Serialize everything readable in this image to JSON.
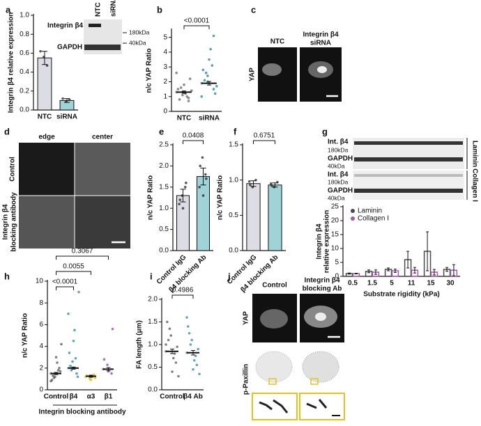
{
  "chart_data": [
    {
      "panel": "a",
      "type": "bar",
      "ylabel": "Integrin β4 relative expression",
      "categories": [
        "NTC",
        "siRNA"
      ],
      "values": [
        0.55,
        0.1
      ],
      "errors": [
        0.07,
        0.02
      ],
      "colors": [
        "#dcdce4",
        "#9fd3d8"
      ],
      "points": [
        [
          0.62,
          0.56,
          0.47
        ],
        [
          0.12,
          0.09,
          0.11
        ]
      ],
      "ylim": [
        0,
        1
      ],
      "yticks": [
        {
          "value": 0,
          "label": "0.0"
        },
        {
          "value": 0.2,
          "label": "0.2"
        },
        {
          "value": 0.4,
          "label": "0.4"
        },
        {
          "value": 0.6,
          "label": "0.6"
        },
        {
          "value": 0.8,
          "label": "0.8"
        },
        {
          "value": 1,
          "label": "1.0"
        }
      ]
    },
    {
      "panel": "b",
      "type": "dot",
      "ylabel": "n/c YAP Ratio",
      "categories": [
        "NTC",
        "siRNA"
      ],
      "values": [
        1.3,
        1.9
      ],
      "errors": [
        0.08,
        0.12
      ],
      "colors": [
        "#666666",
        "#1f7d99"
      ],
      "points": [
        [
          1.3,
          1.1,
          0.9,
          1.5,
          1.8,
          2.2,
          0.8,
          1.2,
          1.4,
          1.6,
          1.0,
          2.6,
          1.3,
          0.7
        ],
        [
          1.9,
          2.4,
          1.5,
          2.8,
          3.5,
          1.2,
          2.1,
          4.2,
          1.7,
          2.6,
          3.1,
          1.0,
          2.0,
          5.1
        ]
      ],
      "pvalues": [
        "<0.0001"
      ],
      "ylim": [
        0,
        5.5
      ],
      "yticks": [
        0,
        1,
        2,
        3,
        4,
        5
      ]
    },
    {
      "panel": "e",
      "type": "bar",
      "ylabel": "n/c YAP Ratio",
      "categories": [
        "Control IgG",
        "β4 blocking Ab"
      ],
      "values": [
        1.3,
        1.75
      ],
      "errors": [
        0.15,
        0.2
      ],
      "colors": [
        "#dcdce4",
        "#9fd3d8"
      ],
      "points": [
        [
          1.1,
          1.3,
          1.5,
          1.2,
          1.0,
          1.6
        ],
        [
          1.5,
          2.2,
          1.8,
          2.0,
          1.3,
          1.7
        ]
      ],
      "pvalues": [
        "0.0408"
      ],
      "ylim": [
        0,
        2.5
      ],
      "yticks": [
        {
          "value": 0,
          "label": "0.0"
        },
        {
          "value": 0.5,
          "label": "0.5"
        },
        {
          "value": 1,
          "label": "1.0"
        },
        {
          "value": 1.5,
          "label": "1.5"
        },
        {
          "value": 2,
          "label": "2.0"
        },
        {
          "value": 2.5,
          "label": "2.5"
        }
      ]
    },
    {
      "panel": "f",
      "type": "bar",
      "ylabel": "n/c YAP Ratio",
      "categories": [
        "Control IgG",
        "β4 blocking Ab"
      ],
      "values": [
        0.95,
        0.93
      ],
      "errors": [
        0.04,
        0.03
      ],
      "colors": [
        "#dcdce4",
        "#9fd3d8"
      ],
      "points": [
        [
          0.98,
          0.9,
          1.0,
          0.93
        ],
        [
          0.95,
          0.9,
          0.97,
          0.92
        ]
      ],
      "pvalues": [
        "0.6751"
      ],
      "ylim": [
        0,
        1.5
      ],
      "yticks": [
        {
          "value": 0,
          "label": "0.0"
        },
        {
          "value": 0.5,
          "label": "0.5"
        },
        {
          "value": 1,
          "label": "1.0"
        },
        {
          "value": 1.5,
          "label": "1.5"
        }
      ]
    },
    {
      "panel": "g",
      "type": "grouped_bar",
      "ylabel": [
        "Integrin  β4",
        "relative expression"
      ],
      "xlabel": "Substrate rigidity (kPa)",
      "categories": [
        "0.5",
        "1.5",
        "5",
        "11",
        "15",
        "30"
      ],
      "series": [
        {
          "name": "Laminin",
          "color": "#4a4a4a",
          "values": [
            1,
            1.8,
            2.5,
            6,
            9,
            2.5
          ],
          "errors": [
            0.2,
            0.5,
            0.5,
            3,
            7,
            0.7
          ]
        },
        {
          "name": "Collagen I",
          "color": "#a259a6",
          "values": [
            1,
            1.5,
            2,
            2.2,
            1.5,
            2.2
          ],
          "errors": [
            0.1,
            0.8,
            0.6,
            1,
            1,
            2
          ]
        }
      ],
      "ylim": [
        0,
        25
      ],
      "yticks": [
        0,
        5,
        10,
        15,
        20,
        25
      ]
    },
    {
      "panel": "h",
      "type": "dot",
      "ylabel": "n/c YAP Ratio",
      "xlabel": "Integrin blocking antibody",
      "categories": [
        "Control",
        "β4",
        "α3",
        "β1"
      ],
      "values": [
        1.5,
        2.0,
        1.25,
        1.9
      ],
      "errors": [
        0.1,
        0.1,
        0.1,
        0.15
      ],
      "colors": [
        "#555555",
        "#2a86a8",
        "#e8b500",
        "#8a4a9a"
      ],
      "points": [
        [
          1.5,
          1.2,
          2.0,
          0.9,
          3.0,
          1.7,
          1.3,
          2.5,
          4.2,
          1.1,
          1.8,
          0.8
        ],
        [
          2.0,
          2.6,
          1.5,
          3.4,
          4.5,
          1.2,
          2.2,
          5.5,
          9.0,
          1.8,
          2.9,
          7.0
        ],
        [
          1.2,
          1.0,
          1.4,
          1.3,
          0.9,
          1.1
        ],
        [
          1.9,
          2.3,
          1.5,
          2.8,
          1.7,
          5.6
        ]
      ],
      "pvalues": [
        "<0.0001",
        "0.0055",
        "0.3067"
      ],
      "ylim": [
        0,
        10
      ],
      "yticks": [
        0,
        2,
        4,
        6,
        8,
        10
      ]
    },
    {
      "panel": "i",
      "type": "dot",
      "ylabel": "FA length (μm)",
      "categories": [
        "Control",
        "β4 Ab"
      ],
      "values": [
        0.85,
        0.82
      ],
      "errors": [
        0.05,
        0.05
      ],
      "colors": [
        "#555555",
        "#2a86a8"
      ],
      "points": [
        [
          0.85,
          1.2,
          0.6,
          1.5,
          0.4,
          0.95,
          1.1,
          0.7,
          0.3,
          1.35,
          0.8,
          1.0
        ],
        [
          0.82,
          1.1,
          0.55,
          1.4,
          0.45,
          0.9,
          1.25,
          0.65,
          0.35,
          1.0,
          0.75,
          1.6
        ]
      ],
      "pvalues": [
        "0.4986"
      ],
      "ylim": [
        0,
        2
      ],
      "yticks": [
        {
          "value": 0,
          "label": "0.0"
        },
        {
          "value": 0.5,
          "label": "0.5"
        },
        {
          "value": 1,
          "label": "1.0"
        },
        {
          "value": 1.5,
          "label": "1.5"
        },
        {
          "value": 2,
          "label": "2.0"
        }
      ]
    }
  ],
  "figures": {
    "a_blot": {
      "target": "Integrin β4",
      "loading": "GAPDH",
      "lanes": [
        "NTC",
        "siRNA"
      ],
      "markers": [
        "180kDa",
        "40kDa"
      ]
    },
    "c": {
      "panel": "c",
      "columns": [
        [
          "NTC"
        ],
        [
          "Integrin β4",
          "siRNA"
        ]
      ],
      "row": "YAP"
    },
    "d": {
      "panel": "d",
      "columns": [
        "edge",
        "center"
      ],
      "rows": [
        [
          "Control"
        ],
        [
          "Integrin β4",
          "blocking antibody"
        ]
      ]
    },
    "g_blot": {
      "lanes": [
        "0.5",
        "1.5",
        "5",
        "11",
        "15",
        "30"
      ],
      "conditions": [
        "Laminin",
        "Collagen I"
      ],
      "rows": [
        "Int. β4",
        "GAPDH",
        "Int. β4",
        "GAPDH"
      ],
      "markers": [
        "180kDa",
        "40kDa",
        "180kDa",
        "40kDa"
      ]
    },
    "j": {
      "panel": "j",
      "columns": [
        [
          "Control"
        ],
        [
          "Integrin β4",
          "blocking Ab"
        ]
      ],
      "rows": [
        "YAP",
        "p-Paxillin"
      ]
    }
  }
}
